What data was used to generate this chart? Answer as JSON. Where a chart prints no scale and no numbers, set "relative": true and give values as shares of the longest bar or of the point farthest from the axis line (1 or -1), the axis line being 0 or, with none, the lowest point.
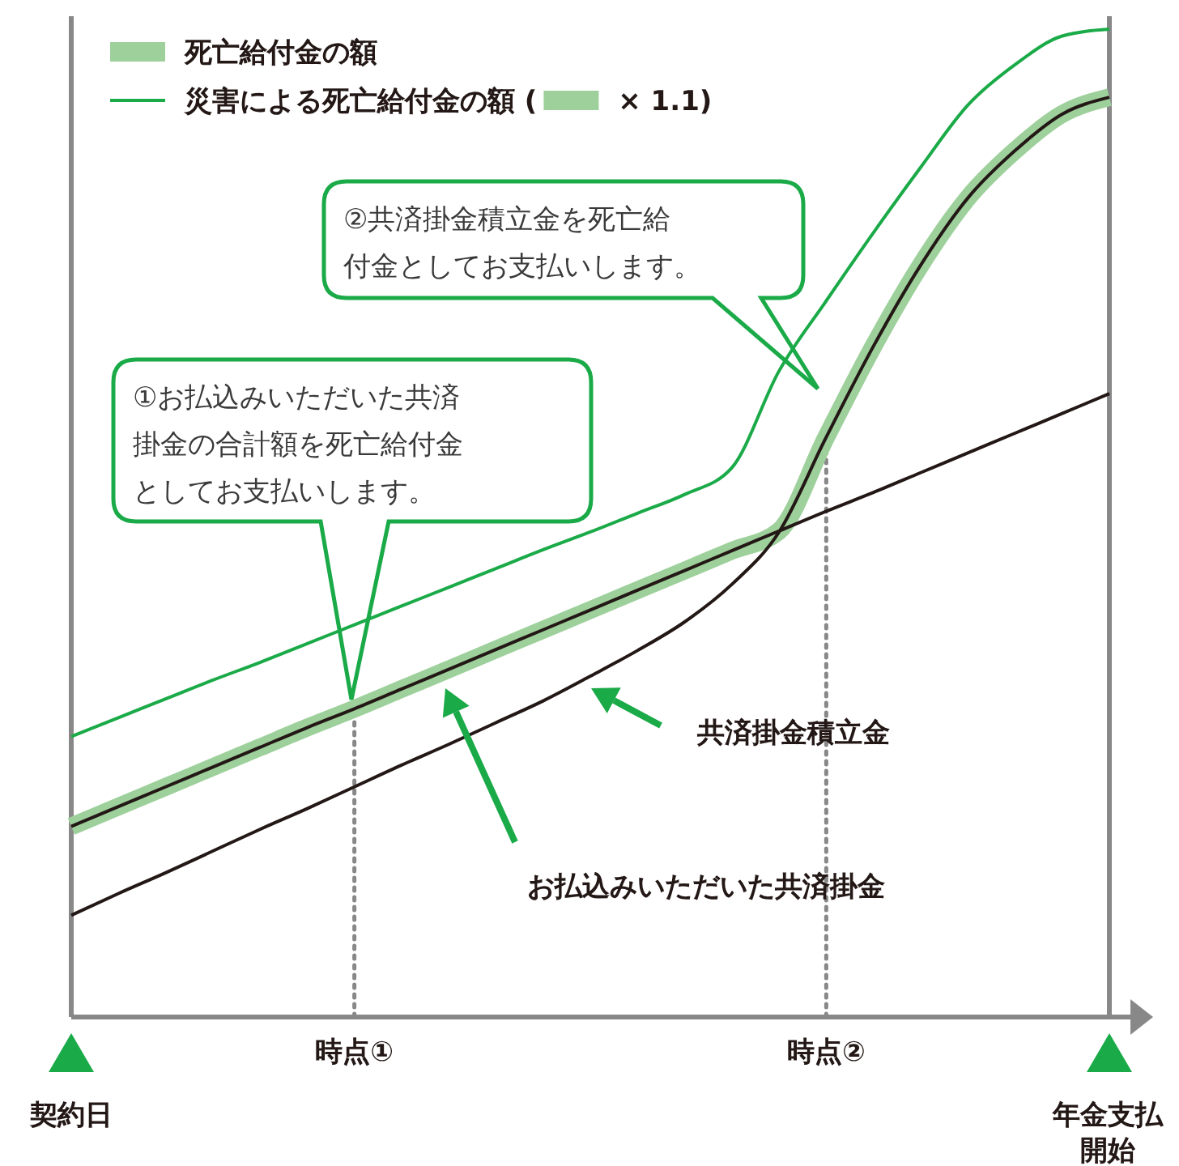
{
  "chart_data": {
    "type": "line",
    "relative": true,
    "legend": "top left",
    "line_style": "solid",
    "categories": [
      "契約日",
      null,
      null,
      null,
      null,
      null,
      "時点①",
      null,
      null,
      null,
      null,
      null,
      null,
      null,
      null,
      null,
      "時点②",
      null,
      null,
      null,
      null,
      null,
      "年金支払開始"
    ],
    "ref_lines": [
      {
        "axis": "x",
        "value": "時点①",
        "label": null,
        "color": "#888888",
        "line_style": "dotted"
      },
      {
        "axis": "x",
        "value": "時点②",
        "label": null,
        "color": "#888888",
        "line_style": "dotted"
      }
    ],
    "series": [
      {
        "name": "災害による死亡給付金の額 ( × 1.1)",
        "color": "#1aaa48",
        "values": [
          0.284,
          0.303,
          0.322,
          0.341,
          0.359,
          0.378,
          0.397,
          0.416,
          0.435,
          0.454,
          0.473,
          0.491,
          0.51,
          0.529,
          0.556,
          0.654,
          0.725,
          0.794,
          0.86,
          0.923,
          0.964,
          0.993,
          1.0
        ]
      },
      {
        "name": "死亡給付金の額",
        "color": "#9dd09b",
        "values": [
          0.193,
          0.213,
          0.233,
          0.253,
          0.273,
          0.293,
          0.312,
          0.332,
          0.352,
          0.372,
          0.392,
          0.412,
          0.432,
          0.452,
          0.472,
          0.492,
          0.587,
          0.679,
          0.761,
          0.829,
          0.877,
          0.914,
          0.931
        ]
      },
      {
        "color": "#231815",
        "values": [
          0.193,
          0.213,
          0.233,
          0.253,
          0.273,
          0.293,
          0.312,
          0.332,
          0.352,
          0.372,
          0.392,
          0.412,
          0.432,
          0.452,
          0.472,
          0.492,
          0.512,
          0.531,
          0.551,
          0.571,
          0.591,
          0.611,
          0.631
        ]
      },
      {
        "color": "#231815",
        "values": [
          0.103,
          0.125,
          0.146,
          0.168,
          0.19,
          0.211,
          0.233,
          0.255,
          0.276,
          0.298,
          0.32,
          0.345,
          0.371,
          0.4,
          0.438,
          0.491,
          0.587,
          0.679,
          0.761,
          0.829,
          0.877,
          0.914,
          0.931
        ]
      }
    ],
    "annotations": [
      "①お払込みいただいた共済掛金の合計額を死亡給付金としてお支払いします。",
      "②共済掛金積立金を死亡給付金としてお支払いします。",
      "お払込みいただいた共済掛金",
      "共済掛金積立金"
    ]
  }
}
